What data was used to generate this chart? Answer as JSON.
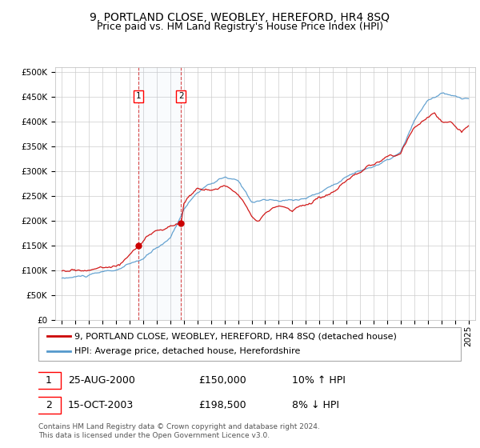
{
  "title": "9, PORTLAND CLOSE, WEOBLEY, HEREFORD, HR4 8SQ",
  "subtitle": "Price paid vs. HM Land Registry's House Price Index (HPI)",
  "background_color": "#ffffff",
  "grid_color": "#cccccc",
  "hpi_line_color": "#5599cc",
  "price_line_color": "#cc0000",
  "legend_label_price": "9, PORTLAND CLOSE, WEOBLEY, HEREFORD, HR4 8SQ (detached house)",
  "legend_label_hpi": "HPI: Average price, detached house, Herefordshire",
  "sale1_date": "25-AUG-2000",
  "sale1_price": "£150,000",
  "sale1_hpi": "10% ↑ HPI",
  "sale1_year": 2000.65,
  "sale1_value": 150000,
  "sale2_date": "15-OCT-2003",
  "sale2_price": "£198,500",
  "sale2_hpi": "8% ↓ HPI",
  "sale2_year": 2003.79,
  "sale2_value": 198500,
  "ylim_min": 0,
  "ylim_max": 510000,
  "xlim_min": 1994.5,
  "xlim_max": 2025.5,
  "footer_text": "Contains HM Land Registry data © Crown copyright and database right 2024.\nThis data is licensed under the Open Government Licence v3.0.",
  "title_fontsize": 10,
  "subtitle_fontsize": 9,
  "tick_label_fontsize": 7.5,
  "legend_fontsize": 8,
  "footer_fontsize": 6.5
}
